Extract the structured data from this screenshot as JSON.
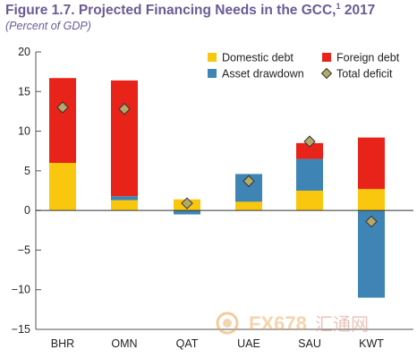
{
  "figure": {
    "title_main": "Figure 1.7. Projected Financing Needs in the GCC,",
    "title_sup": "1",
    "title_year": " 2017",
    "subtitle": "(Percent of GDP)"
  },
  "watermark": {
    "text": "FX678",
    "text_cn": "汇通网"
  },
  "colors": {
    "domestic_debt": "#f9c80e",
    "foreign_debt": "#e8231a",
    "asset_drawdown": "#3e84b4",
    "total_deficit": "#b5a96a",
    "title": "#6b5b95"
  },
  "chart_data": {
    "type": "bar",
    "stacked": true,
    "categories": [
      "BHR",
      "OMN",
      "QAT",
      "UAE",
      "SAU",
      "KWT"
    ],
    "series": [
      {
        "name": "Domestic debt",
        "key": "domestic_debt",
        "values": [
          6.0,
          1.3,
          1.4,
          1.1,
          2.5,
          2.7
        ]
      },
      {
        "name": "Asset drawdown",
        "key": "asset_drawdown",
        "values": [
          0.0,
          0.5,
          -0.5,
          3.5,
          4.0,
          -11.0
        ]
      },
      {
        "name": "Foreign debt",
        "key": "foreign_debt",
        "values": [
          10.7,
          14.6,
          0.0,
          0.0,
          2.0,
          6.5
        ]
      }
    ],
    "markers": {
      "name": "Total deficit",
      "key": "total_deficit",
      "values": [
        13.0,
        12.8,
        0.9,
        3.7,
        8.7,
        -1.4
      ]
    },
    "ylim": [
      -15,
      20
    ],
    "yticks": [
      -15,
      -10,
      -5,
      0,
      5,
      10,
      15,
      20
    ],
    "ytick_labels": [
      "−15",
      "−10",
      "−5",
      "0",
      "5",
      "10",
      "15",
      "20"
    ],
    "legend": [
      {
        "name": "Domestic debt",
        "key": "domestic_debt",
        "shape": "square"
      },
      {
        "name": "Foreign debt",
        "key": "foreign_debt",
        "shape": "square"
      },
      {
        "name": "Asset drawdown",
        "key": "asset_drawdown",
        "shape": "square"
      },
      {
        "name": "Total deficit",
        "key": "total_deficit",
        "shape": "diamond"
      }
    ],
    "legend_position": "top-right",
    "grid": false
  }
}
